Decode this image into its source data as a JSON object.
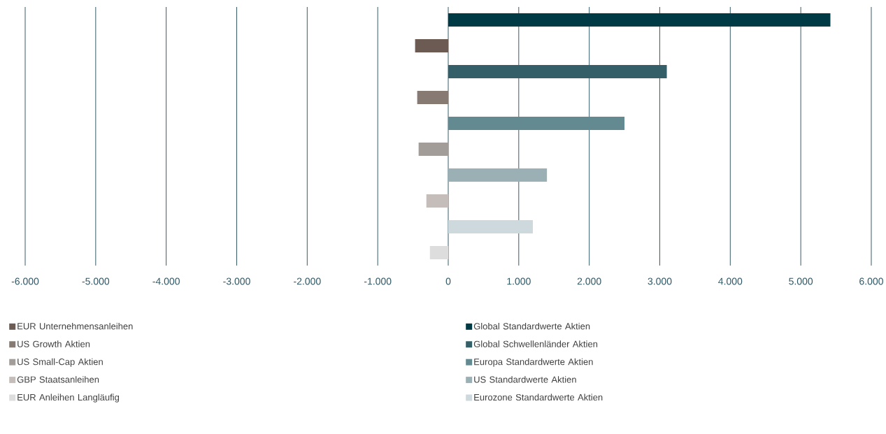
{
  "chart_data": {
    "type": "bar",
    "orientation": "horizontal",
    "categories": [
      null,
      null,
      null,
      null,
      null,
      null,
      null,
      null,
      null,
      null
    ],
    "series": [
      {
        "name": "EUR Unternehmensanleihen",
        "color": "#6b5b52",
        "values": [
          null,
          -470,
          null,
          null,
          null,
          null,
          null,
          null,
          null,
          null
        ]
      },
      {
        "name": "Global Standardwerte Aktien",
        "color": "#003a45",
        "values": [
          5420,
          null,
          null,
          null,
          null,
          null,
          null,
          null,
          null,
          null
        ]
      },
      {
        "name": "US Growth Aktien",
        "color": "#877a72",
        "values": [
          null,
          null,
          null,
          -440,
          null,
          null,
          null,
          null,
          null,
          null
        ]
      },
      {
        "name": "Global Schwellenländer Aktien",
        "color": "#355f68",
        "values": [
          null,
          null,
          3100,
          null,
          null,
          null,
          null,
          null,
          null,
          null
        ]
      },
      {
        "name": "US Small-Cap Aktien",
        "color": "#a39d99",
        "values": [
          null,
          null,
          null,
          null,
          null,
          -420,
          null,
          null,
          null,
          null
        ]
      },
      {
        "name": "Europa Standardwerte Aktien",
        "color": "#648a91",
        "values": [
          null,
          null,
          null,
          null,
          2500,
          null,
          null,
          null,
          null,
          null
        ]
      },
      {
        "name": "GBP Staatsanleihen",
        "color": "#c4bdb9",
        "values": [
          null,
          null,
          null,
          null,
          null,
          null,
          null,
          -310,
          null,
          null
        ]
      },
      {
        "name": "US Standardwerte Aktien",
        "color": "#9ab0b5",
        "values": [
          null,
          null,
          null,
          null,
          null,
          null,
          1400,
          null,
          null,
          null
        ]
      },
      {
        "name": "EUR Anleihen Langläufig",
        "color": "#dddddd",
        "values": [
          null,
          null,
          null,
          null,
          null,
          null,
          null,
          null,
          null,
          -260
        ]
      },
      {
        "name": "Eurozone Standardwerte Aktien",
        "color": "#cdd9dc",
        "values": [
          null,
          null,
          null,
          null,
          null,
          null,
          null,
          null,
          1200,
          null
        ]
      }
    ],
    "xlim": [
      -6000,
      6000
    ],
    "xticks": [
      {
        "value": -6000,
        "label": "-6.000"
      },
      {
        "value": -5000,
        "label": "-5.000"
      },
      {
        "value": -4000,
        "label": "-4.000"
      },
      {
        "value": -3000,
        "label": "-3.000"
      },
      {
        "value": -2000,
        "label": "-2.000"
      },
      {
        "value": -1000,
        "label": "-1.000"
      },
      0,
      {
        "value": 1000,
        "label": "1.000"
      },
      {
        "value": 2000,
        "label": "2.000"
      },
      {
        "value": 3000,
        "label": "3.000"
      },
      {
        "value": 4000,
        "label": "4.000"
      },
      {
        "value": 5000,
        "label": "5.000"
      },
      {
        "value": 6000,
        "label": "6.000"
      }
    ],
    "grid": "x",
    "legend": "bottom"
  }
}
